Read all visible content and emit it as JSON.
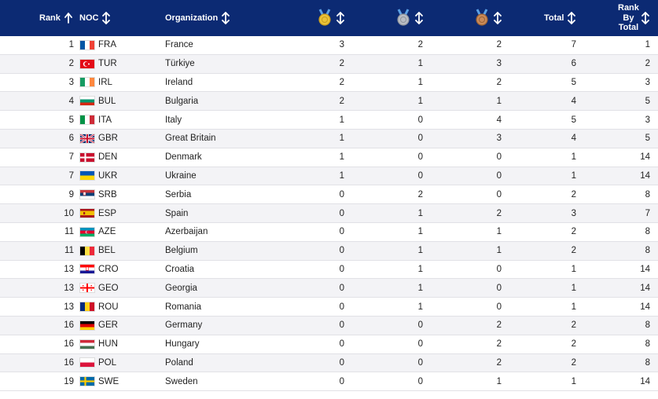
{
  "header": {
    "rank": "Rank",
    "noc": "NOC",
    "organization": "Organization",
    "gold_icon": "gold-medal-icon",
    "silver_icon": "silver-medal-icon",
    "bronze_icon": "bronze-medal-icon",
    "total": "Total",
    "rank_by_total_1": "Rank",
    "rank_by_total_2": "By",
    "rank_by_total_3": "Total"
  },
  "colors": {
    "header_bg": "#0c2a73",
    "gold": "#e9c239",
    "silver": "#b8bcc4",
    "bronze": "#c98a5a"
  },
  "rows": [
    {
      "rank": "1",
      "flag": "fr",
      "noc": "FRA",
      "org": "France",
      "gold": "3",
      "silver": "2",
      "bronze": "2",
      "total": "7",
      "rank_total": "1"
    },
    {
      "rank": "2",
      "flag": "tr",
      "noc": "TUR",
      "org": "Türkiye",
      "gold": "2",
      "silver": "1",
      "bronze": "3",
      "total": "6",
      "rank_total": "2"
    },
    {
      "rank": "3",
      "flag": "ie",
      "noc": "IRL",
      "org": "Ireland",
      "gold": "2",
      "silver": "1",
      "bronze": "2",
      "total": "5",
      "rank_total": "3"
    },
    {
      "rank": "4",
      "flag": "bg",
      "noc": "BUL",
      "org": "Bulgaria",
      "gold": "2",
      "silver": "1",
      "bronze": "1",
      "total": "4",
      "rank_total": "5"
    },
    {
      "rank": "5",
      "flag": "it",
      "noc": "ITA",
      "org": "Italy",
      "gold": "1",
      "silver": "0",
      "bronze": "4",
      "total": "5",
      "rank_total": "3"
    },
    {
      "rank": "6",
      "flag": "gb",
      "noc": "GBR",
      "org": "Great Britain",
      "gold": "1",
      "silver": "0",
      "bronze": "3",
      "total": "4",
      "rank_total": "5"
    },
    {
      "rank": "7",
      "flag": "dk",
      "noc": "DEN",
      "org": "Denmark",
      "gold": "1",
      "silver": "0",
      "bronze": "0",
      "total": "1",
      "rank_total": "14"
    },
    {
      "rank": "7",
      "flag": "ua",
      "noc": "UKR",
      "org": "Ukraine",
      "gold": "1",
      "silver": "0",
      "bronze": "0",
      "total": "1",
      "rank_total": "14"
    },
    {
      "rank": "9",
      "flag": "rs",
      "noc": "SRB",
      "org": "Serbia",
      "gold": "0",
      "silver": "2",
      "bronze": "0",
      "total": "2",
      "rank_total": "8"
    },
    {
      "rank": "10",
      "flag": "es",
      "noc": "ESP",
      "org": "Spain",
      "gold": "0",
      "silver": "1",
      "bronze": "2",
      "total": "3",
      "rank_total": "7"
    },
    {
      "rank": "11",
      "flag": "az",
      "noc": "AZE",
      "org": "Azerbaijan",
      "gold": "0",
      "silver": "1",
      "bronze": "1",
      "total": "2",
      "rank_total": "8"
    },
    {
      "rank": "11",
      "flag": "be",
      "noc": "BEL",
      "org": "Belgium",
      "gold": "0",
      "silver": "1",
      "bronze": "1",
      "total": "2",
      "rank_total": "8"
    },
    {
      "rank": "13",
      "flag": "hr",
      "noc": "CRO",
      "org": "Croatia",
      "gold": "0",
      "silver": "1",
      "bronze": "0",
      "total": "1",
      "rank_total": "14"
    },
    {
      "rank": "13",
      "flag": "ge",
      "noc": "GEO",
      "org": "Georgia",
      "gold": "0",
      "silver": "1",
      "bronze": "0",
      "total": "1",
      "rank_total": "14"
    },
    {
      "rank": "13",
      "flag": "ro",
      "noc": "ROU",
      "org": "Romania",
      "gold": "0",
      "silver": "1",
      "bronze": "0",
      "total": "1",
      "rank_total": "14"
    },
    {
      "rank": "16",
      "flag": "de",
      "noc": "GER",
      "org": "Germany",
      "gold": "0",
      "silver": "0",
      "bronze": "2",
      "total": "2",
      "rank_total": "8"
    },
    {
      "rank": "16",
      "flag": "hu",
      "noc": "HUN",
      "org": "Hungary",
      "gold": "0",
      "silver": "0",
      "bronze": "2",
      "total": "2",
      "rank_total": "8"
    },
    {
      "rank": "16",
      "flag": "pl",
      "noc": "POL",
      "org": "Poland",
      "gold": "0",
      "silver": "0",
      "bronze": "2",
      "total": "2",
      "rank_total": "8"
    },
    {
      "rank": "19",
      "flag": "se",
      "noc": "SWE",
      "org": "Sweden",
      "gold": "0",
      "silver": "0",
      "bronze": "1",
      "total": "1",
      "rank_total": "14"
    }
  ]
}
